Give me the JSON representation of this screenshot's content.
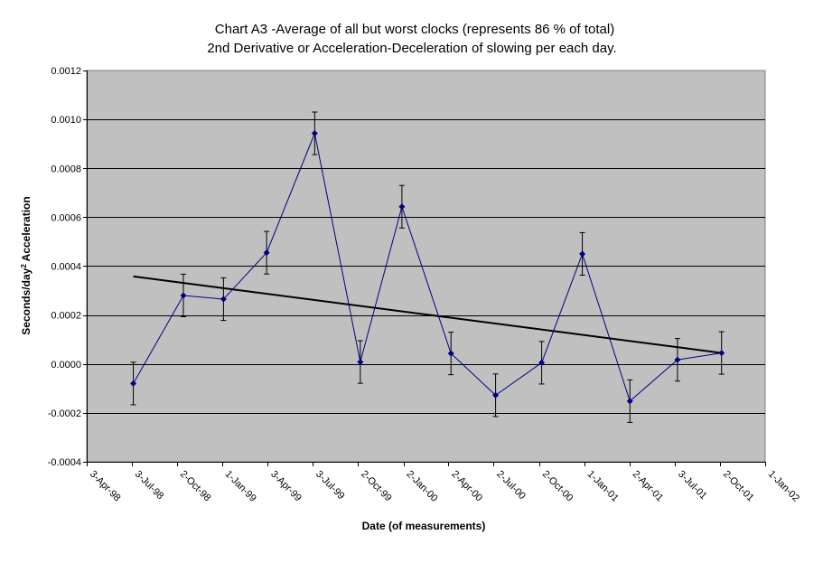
{
  "chart_data": {
    "type": "line",
    "title_line1": "Chart A3 -Average of all but worst clocks (represents 86 % of total)",
    "title_line2": "2nd Derivative or Acceleration-Deceleration of slowing per each day.",
    "xlabel": "Date (of measurements)",
    "ylabel_prefix": "Seconds/day",
    "ylabel_sup": "2",
    "ylabel_suffix": " Acceleration",
    "ylim": [
      -0.0004,
      0.0012
    ],
    "y_ticks": [
      "0.0012",
      "0.0010",
      "0.0008",
      "0.0006",
      "0.0004",
      "0.0002",
      "0.0000",
      "-0.0002",
      "-0.0004"
    ],
    "x_ticks": [
      "3-Apr-98",
      "3-Jul-98",
      "2-Oct-98",
      "1-Jan-99",
      "3-Apr-99",
      "3-Jul-99",
      "2-Oct-99",
      "2-Jan-00",
      "2-Apr-00",
      "2-Jul-00",
      "2-Oct-00",
      "1-Jan-01",
      "2-Apr-01",
      "3-Jul-01",
      "2-Oct-01",
      "1-Jan-02"
    ],
    "grid": "horizontal",
    "colors": {
      "plot_background": "#c0c0c0",
      "series": "#000080",
      "trend": "#000000",
      "error_bars": "#000000"
    },
    "series": [
      {
        "x": [
          "1998-07-06",
          "1998-10-15",
          "1999-01-04",
          "1999-04-01",
          "1999-07-07",
          "1999-10-07",
          "1999-12-30",
          "2000-04-07",
          "2000-07-06",
          "2000-10-07",
          "2000-12-28",
          "2001-04-03",
          "2001-07-08",
          "2001-10-05"
        ],
        "y": [
          -8e-05,
          0.00028,
          0.000265,
          0.000455,
          0.000943,
          8e-06,
          0.000643,
          4.3e-05,
          -0.000128,
          5e-06,
          0.00045,
          -0.000152,
          1.7e-05,
          4.5e-05
        ],
        "error": 8.7e-05
      }
    ],
    "trendline": {
      "x": [
        "1998-07-06",
        "2001-10-05"
      ],
      "y": [
        0.000358,
        4.5e-05
      ]
    }
  }
}
